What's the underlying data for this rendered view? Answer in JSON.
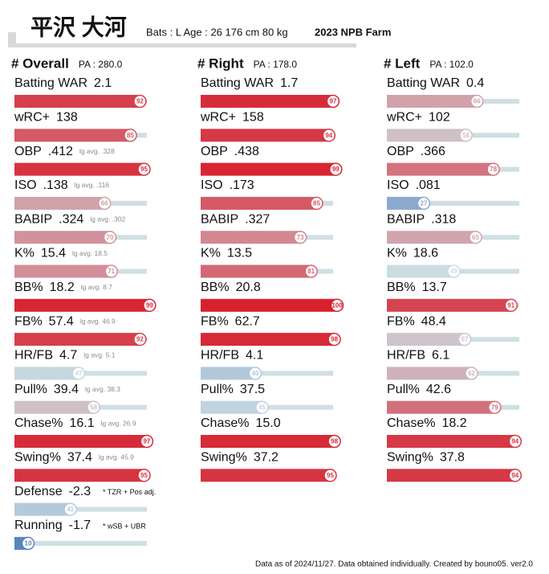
{
  "header": {
    "name": "平沢 大河",
    "info": "Bats : L  Age : 26  176 cm 80 kg",
    "league": "2023 NPB Farm"
  },
  "columns": [
    {
      "title": "# Overall",
      "pa": "PA : 280.0",
      "rows": [
        {
          "label": "Batting WAR",
          "value": "2.1",
          "pct": 92
        },
        {
          "label": "wRC+",
          "value": "138",
          "pct": 85
        },
        {
          "label": "OBP",
          "value": ".412",
          "note": "lg avg. .328",
          "pct": 95
        },
        {
          "label": "ISO",
          "value": ".138",
          "note": "lg avg. .116",
          "pct": 66
        },
        {
          "label": "BABIP",
          "value": ".324",
          "note": "lg avg. .302",
          "pct": 70
        },
        {
          "label": "K%",
          "value": "15.4",
          "note": "lg avg. 18.5",
          "pct": 71
        },
        {
          "label": "BB%",
          "value": "18.2",
          "note": "lg avg. 8.7",
          "pct": 99
        },
        {
          "label": "FB%",
          "value": "57.4",
          "note": "lg avg. 46.9",
          "pct": 92
        },
        {
          "label": "HR/FB",
          "value": "4.7",
          "note": "lg avg. 5.1",
          "pct": 47
        },
        {
          "label": "Pull%",
          "value": "39.4",
          "note": "lg avg. 38.3",
          "pct": 58
        },
        {
          "label": "Chase%",
          "value": "16.1",
          "note": "lg avg. 26.9",
          "pct": 97
        },
        {
          "label": "Swing%",
          "value": "37.4",
          "note": "lg avg. 45.9",
          "pct": 95
        },
        {
          "label": "Defense",
          "value": "-2.3",
          "note": "* TZR + Pos adj.",
          "pct": 41
        },
        {
          "label": "Running",
          "value": "-1.7",
          "note": "* wSB + UBR",
          "pct": 10
        }
      ]
    },
    {
      "title": "# Right",
      "pa": "PA : 178.0",
      "rows": [
        {
          "label": "Batting WAR",
          "value": "1.7",
          "pct": 97
        },
        {
          "label": "wRC+",
          "value": "158",
          "pct": 94
        },
        {
          "label": "OBP",
          "value": ".438",
          "pct": 99
        },
        {
          "label": "ISO",
          "value": ".173",
          "pct": 85
        },
        {
          "label": "BABIP",
          "value": ".327",
          "pct": 73
        },
        {
          "label": "K%",
          "value": "13.5",
          "pct": 81
        },
        {
          "label": "BB%",
          "value": "20.8",
          "pct": 100
        },
        {
          "label": "FB%",
          "value": "62.7",
          "pct": 98
        },
        {
          "label": "HR/FB",
          "value": "4.1",
          "pct": 40
        },
        {
          "label": "Pull%",
          "value": "37.5",
          "pct": 45
        },
        {
          "label": "Chase%",
          "value": "15.0",
          "pct": 98
        },
        {
          "label": "Swing%",
          "value": "37.2",
          "pct": 95
        }
      ]
    },
    {
      "title": "# Left",
      "pa": "PA : 102.0",
      "rows": [
        {
          "label": "Batting WAR",
          "value": "0.4",
          "pct": 66
        },
        {
          "label": "wRC+",
          "value": "102",
          "pct": 58
        },
        {
          "label": "OBP",
          "value": ".366",
          "pct": 78
        },
        {
          "label": "ISO",
          "value": ".081",
          "pct": 27
        },
        {
          "label": "BABIP",
          "value": ".318",
          "pct": 65
        },
        {
          "label": "K%",
          "value": "18.6",
          "pct": 49
        },
        {
          "label": "BB%",
          "value": "13.7",
          "pct": 91
        },
        {
          "label": "FB%",
          "value": "48.4",
          "pct": 57
        },
        {
          "label": "HR/FB",
          "value": "6.1",
          "pct": 62
        },
        {
          "label": "Pull%",
          "value": "42.6",
          "pct": 79
        },
        {
          "label": "Chase%",
          "value": "18.2",
          "pct": 94
        },
        {
          "label": "Swing%",
          "value": "37.8",
          "pct": 94
        }
      ]
    }
  ],
  "footer": "Data as of 2024/11/27. Data obtained individually. Created by bouno05.  ver2.0"
}
